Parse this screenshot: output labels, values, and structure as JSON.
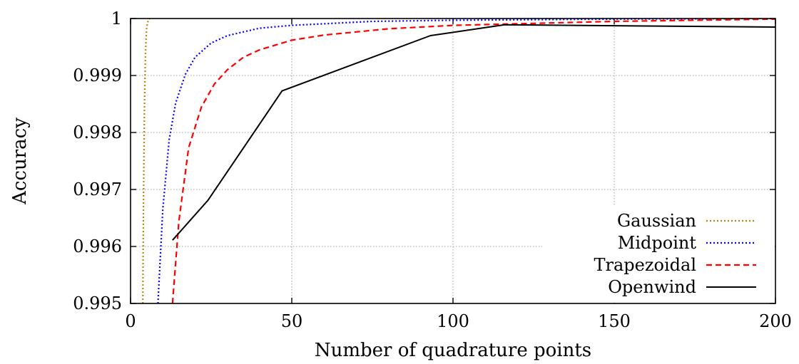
{
  "chart_data": {
    "type": "line",
    "xlabel": "Number of quadrature points",
    "ylabel": "Accuracy",
    "xlim": [
      0,
      200
    ],
    "ylim": [
      0.995,
      1.0
    ],
    "grid": true,
    "legend_position": "bottom-right",
    "x_ticks": [
      {
        "value": 0,
        "label": "0"
      },
      {
        "value": 50,
        "label": "50"
      },
      {
        "value": 100,
        "label": "100"
      },
      {
        "value": 150,
        "label": "150"
      },
      {
        "value": 200,
        "label": "200"
      }
    ],
    "y_ticks": [
      {
        "value": 0.995,
        "label": "0.995"
      },
      {
        "value": 0.996,
        "label": "0.996"
      },
      {
        "value": 0.997,
        "label": "0.997"
      },
      {
        "value": 0.998,
        "label": "0.998"
      },
      {
        "value": 0.999,
        "label": "0.999"
      },
      {
        "value": 1.0,
        "label": "1"
      }
    ],
    "series": [
      {
        "name": "Gaussian",
        "color": "#b8860b",
        "dash": "dotted",
        "x": [
          3.8,
          4.0,
          4.3,
          4.6,
          5.0,
          5.5,
          6.0
        ],
        "y": [
          0.995,
          0.99675,
          0.99835,
          0.99935,
          0.99985,
          0.99998,
          1.0
        ]
      },
      {
        "name": "Midpoint",
        "color": "#0000ff",
        "dash": "dotted",
        "x": [
          8.5,
          10,
          12,
          14,
          17,
          20,
          25,
          30,
          40,
          50,
          75,
          100,
          150,
          200
        ],
        "y": [
          0.995,
          0.99665,
          0.99788,
          0.99852,
          0.99902,
          0.99932,
          0.99957,
          0.9997,
          0.99983,
          0.99988,
          0.99995,
          0.99997,
          0.99999,
          1.0
        ]
      },
      {
        "name": "Trapezoidal",
        "color": "#ff0000",
        "dash": "dashed",
        "x": [
          13,
          15,
          18,
          22,
          26,
          30,
          35,
          40,
          50,
          60,
          80,
          100,
          150,
          200
        ],
        "y": [
          0.995,
          0.99645,
          0.99773,
          0.99845,
          0.99885,
          0.9991,
          0.99932,
          0.99945,
          0.99962,
          0.99971,
          0.99982,
          0.99988,
          0.99995,
          0.99999
        ]
      },
      {
        "name": "Openwind",
        "color": "#000000",
        "dash": "solid",
        "x": [
          13,
          24,
          47,
          93,
          116,
          200
        ],
        "y": [
          0.99611,
          0.99681,
          0.99873,
          0.9997,
          0.99989,
          0.99985
        ]
      }
    ]
  }
}
